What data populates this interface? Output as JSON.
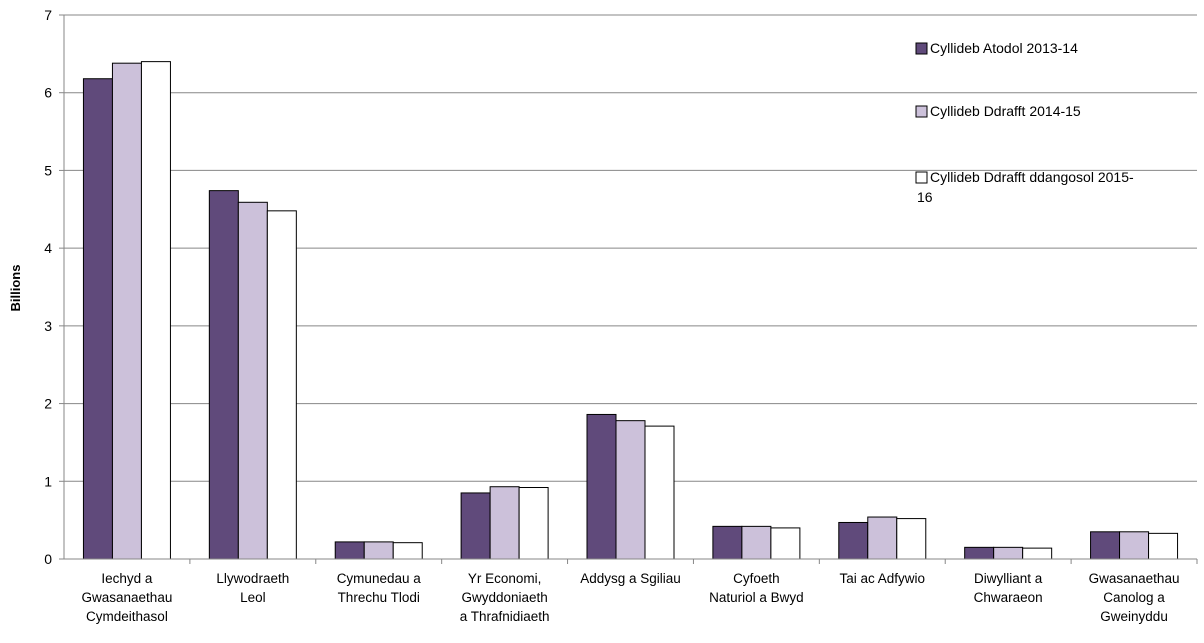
{
  "chart_data": {
    "type": "bar",
    "ylabel": "Billions",
    "ylim": [
      0,
      7
    ],
    "yticks": [
      0,
      1,
      2,
      3,
      4,
      5,
      6,
      7
    ],
    "grid": true,
    "legend_position": "top-right",
    "categories": [
      [
        "Iechyd a",
        "Gwasanaethau",
        "Cymdeithasol"
      ],
      [
        "Llywodraeth",
        "Leol"
      ],
      [
        "Cymunedau a",
        "Threchu Tlodi"
      ],
      [
        "Yr Economi,",
        "Gwyddoniaeth",
        "a Thrafnidiaeth"
      ],
      [
        "Addysg a Sgiliau"
      ],
      [
        "Cyfoeth",
        "Naturiol a Bwyd"
      ],
      [
        "Tai ac Adfywio"
      ],
      [
        "Diwylliant a",
        "Chwaraeon"
      ],
      [
        "Gwasanaethau",
        "Canolog a",
        "Gweinyddu"
      ]
    ],
    "series": [
      {
        "name": [
          "Cyllideb Atodol 2013-14"
        ],
        "color": "#604a7b",
        "values": [
          6.18,
          4.74,
          0.22,
          0.85,
          1.86,
          0.42,
          0.47,
          0.15,
          0.35
        ]
      },
      {
        "name": [
          "Cyllideb Ddrafft 2014-15"
        ],
        "color": "#ccc1da",
        "values": [
          6.38,
          4.59,
          0.22,
          0.93,
          1.78,
          0.42,
          0.54,
          0.15,
          0.35
        ]
      },
      {
        "name": [
          "Cyllideb Ddrafft ddangosol 2015-",
          "16"
        ],
        "color": "#ffffff",
        "values": [
          6.4,
          4.48,
          0.21,
          0.92,
          1.71,
          0.4,
          0.52,
          0.14,
          0.33
        ]
      }
    ]
  }
}
